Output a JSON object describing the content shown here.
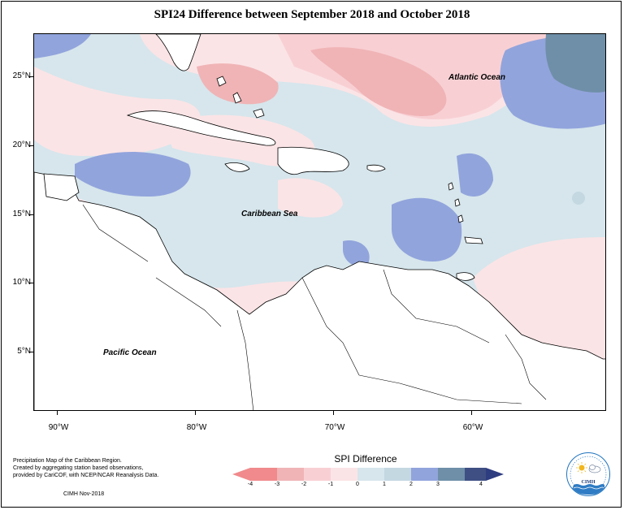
{
  "title": "SPI24 Difference between September 2018 and October 2018",
  "labels": {
    "atlantic": "Atlantic Ocean",
    "caribbean": "Caribbean Sea",
    "pacific": "Pacific Ocean"
  },
  "axes": {
    "lat": [
      "25°N",
      "20°N",
      "15°N",
      "10°N",
      "5°N"
    ],
    "lon": [
      "90°W",
      "80°W",
      "70°W",
      "60°W"
    ]
  },
  "notes": {
    "line1": "Precipitation Map of the Caribbean Region.",
    "line2": "Created by aggregating station based observations,",
    "line3": "provided by CariCOF, with NCEP/NCAR Reanalysis Data.",
    "credit": "CIMH Nov-2018"
  },
  "legend": {
    "title": "SPI Difference",
    "ticks": [
      "-4",
      "-3",
      "-2",
      "-1",
      "0",
      "1",
      "2",
      "3",
      "4"
    ],
    "colors": [
      "#f08a8c",
      "#f0b4b6",
      "#f8d0d4",
      "#fbe4e6",
      "#d6e6ec",
      "#c4d8e2",
      "#92a4dc",
      "#6f8fa8",
      "#3f4f84",
      "#2e3c80"
    ]
  },
  "logo": {
    "text": "CIMH",
    "icons": [
      "sun-icon",
      "cloud-icon",
      "rain-icon"
    ]
  }
}
